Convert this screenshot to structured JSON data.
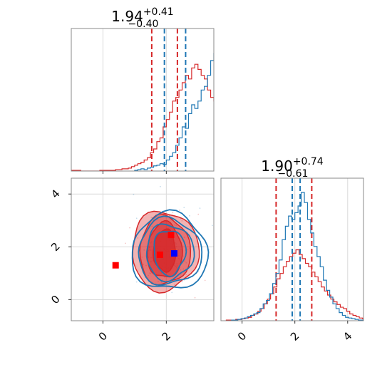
{
  "chart_data": {
    "type": "corner",
    "colors": {
      "series_a": "#1f77b4",
      "series_b": "#d62728",
      "grid": "#d9d9d9",
      "frame": "#888888"
    },
    "panels": [
      {
        "id": "marginal-x",
        "type": "histogram",
        "title": {
          "value": "1.94",
          "upper": "+0.41",
          "lower": "−0.40"
        },
        "xlim": [
          -1.0,
          3.5
        ],
        "bin_width": 0.1,
        "series": [
          {
            "color": "#1f77b4",
            "x_start": 1.0,
            "counts": [
              1,
              2,
              3,
              2,
              4,
              5,
              7,
              8,
              10,
              9,
              15,
              20,
              25,
              35,
              45,
              60,
              58,
              78,
              90,
              85,
              95,
              110,
              115,
              130,
              150,
              160,
              170,
              180,
              175,
              168,
              155,
              140,
              120,
              105,
              90,
              70,
              55,
              45,
              35,
              22,
              15,
              10,
              6,
              3,
              2,
              1
            ],
            "quantiles": [
              1.54,
              1.94,
              2.35
            ],
            "quantile_lines": [
              1.94,
              2.61
            ]
          },
          {
            "color": "#d62728",
            "x_start": -1.0,
            "counts": [
              1,
              1,
              1,
              0,
              0,
              0,
              0,
              0,
              0,
              1,
              1,
              1,
              1,
              1,
              2,
              2,
              3,
              3,
              4,
              6,
              8,
              10,
              12,
              15,
              18,
              25,
              30,
              40,
              45,
              60,
              70,
              80,
              95,
              100,
              110,
              120,
              130,
              125,
              140,
              145,
              138,
              130,
              125,
              110,
              100,
              95,
              80,
              65,
              55,
              45,
              38,
              30,
              25,
              20,
              15,
              12,
              10,
              8,
              6,
              4
            ],
            "quantile_lines": [
              1.54,
              2.35
            ]
          }
        ]
      },
      {
        "id": "joint",
        "type": "contour",
        "xlim": [
          -1.0,
          3.5
        ],
        "ylim": [
          -0.8,
          4.6
        ],
        "x_ticks": [
          "0",
          "2"
        ],
        "y_ticks": [
          "0",
          "2",
          "4"
        ],
        "markers": [
          {
            "x": 0.4,
            "y": 1.3,
            "color": "#ff0000"
          },
          {
            "x": 1.8,
            "y": 1.7,
            "color": "#ff0000"
          },
          {
            "x": 2.15,
            "y": 2.45,
            "color": "#ff0000"
          },
          {
            "x": 2.25,
            "y": 1.75,
            "color": "#0000ff"
          }
        ],
        "series": [
          {
            "color": "#1f77b4",
            "center": [
              2.1,
              1.8
            ],
            "levels": [
              [
                0.5,
                0.85
              ],
              [
                0.75,
                1.05
              ],
              [
                1.0,
                1.25
              ],
              [
                1.2,
                1.45
              ]
            ]
          },
          {
            "color": "#d62728",
            "center": [
              1.95,
              1.85
            ],
            "levels": [
              [
                0.35,
                0.8
              ],
              [
                0.55,
                1.05
              ],
              [
                0.8,
                1.3
              ],
              [
                1.05,
                1.5
              ]
            ]
          }
        ]
      },
      {
        "id": "marginal-y",
        "type": "histogram",
        "title": {
          "value": "1.90",
          "upper": "+0.74",
          "lower": "−0.61"
        },
        "xlim": [
          -0.8,
          4.6
        ],
        "x_ticks": [
          "0",
          "2",
          "4"
        ],
        "bin_width": 0.12,
        "series": [
          {
            "color": "#1f77b4",
            "x_start": -0.4,
            "counts": [
              1,
              1,
              2,
              3,
              4,
              6,
              8,
              10,
              12,
              18,
              25,
              30,
              40,
              55,
              70,
              90,
              120,
              140,
              155,
              150,
              160,
              170,
              190,
              175,
              150,
              130,
              110,
              95,
              80,
              60,
              45,
              35,
              25,
              18,
              12,
              8,
              5,
              4,
              3,
              2,
              1,
              1
            ],
            "quantile_lines": [
              1.9,
              2.2
            ]
          },
          {
            "color": "#d62728",
            "x_start": -0.6,
            "counts": [
              1,
              1,
              1,
              2,
              2,
              3,
              4,
              5,
              8,
              10,
              14,
              18,
              25,
              32,
              40,
              50,
              62,
              70,
              80,
              88,
              95,
              100,
              105,
              98,
              92,
              85,
              80,
              72,
              65,
              58,
              50,
              44,
              38,
              32,
              28,
              24,
              20,
              18,
              14,
              10,
              8,
              6,
              4,
              3,
              2,
              2,
              1,
              1
            ],
            "quantile_lines": [
              1.29,
              2.64
            ]
          }
        ]
      }
    ]
  }
}
